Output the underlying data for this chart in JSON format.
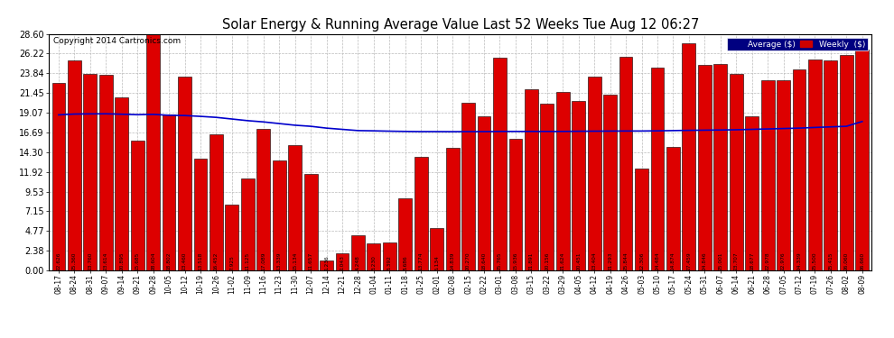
{
  "title": "Solar Energy & Running Average Value Last 52 Weeks Tue Aug 12 06:27",
  "copyright": "Copyright 2014 Cartronics.com",
  "bar_color": "#dd0000",
  "bar_edge_color": "#000000",
  "avg_line_color": "#0000cc",
  "background_color": "#ffffff",
  "plot_bg_color": "#ffffff",
  "grid_color": "#bbbbbb",
  "yticks": [
    0.0,
    2.38,
    4.77,
    7.15,
    9.53,
    11.92,
    14.3,
    16.69,
    19.07,
    21.45,
    23.84,
    26.22,
    28.6
  ],
  "ylim": [
    0,
    28.6
  ],
  "categories": [
    "08-17",
    "08-24",
    "08-31",
    "09-07",
    "09-14",
    "09-21",
    "09-28",
    "10-05",
    "10-12",
    "10-19",
    "10-26",
    "11-02",
    "11-09",
    "11-16",
    "11-23",
    "11-30",
    "12-07",
    "12-14",
    "12-21",
    "12-28",
    "01-04",
    "01-11",
    "01-18",
    "01-25",
    "02-01",
    "02-08",
    "02-15",
    "02-22",
    "03-01",
    "03-08",
    "03-15",
    "03-22",
    "03-29",
    "04-05",
    "04-12",
    "04-19",
    "04-26",
    "05-03",
    "05-10",
    "05-17",
    "05-24",
    "05-31",
    "06-07",
    "06-14",
    "06-21",
    "06-28",
    "07-05",
    "07-12",
    "07-19",
    "07-26",
    "08-02",
    "08-09"
  ],
  "values": [
    22.626,
    25.36,
    23.76,
    23.614,
    20.895,
    15.685,
    28.604,
    18.802,
    23.46,
    13.518,
    16.452,
    7.925,
    11.125,
    17.089,
    13.339,
    15.134,
    11.657,
    1.236,
    2.043,
    4.248,
    3.23,
    3.392,
    8.686,
    13.774,
    5.134,
    14.839,
    20.27,
    18.64,
    25.765,
    15.936,
    21.891,
    20.156,
    21.624,
    20.451,
    23.404,
    21.293,
    25.844,
    12.306,
    24.484,
    14.874,
    27.459,
    24.846,
    25.001,
    23.707,
    18.677,
    22.978,
    22.976,
    24.339,
    25.5,
    25.415,
    26.06,
    26.66
  ],
  "avg_values": [
    18.8,
    18.9,
    18.92,
    18.93,
    18.88,
    18.82,
    18.86,
    18.75,
    18.72,
    18.62,
    18.5,
    18.3,
    18.1,
    17.95,
    17.75,
    17.55,
    17.42,
    17.2,
    17.05,
    16.9,
    16.87,
    16.83,
    16.8,
    16.78,
    16.78,
    16.77,
    16.78,
    16.78,
    16.8,
    16.8,
    16.8,
    16.8,
    16.8,
    16.82,
    16.83,
    16.84,
    16.85,
    16.85,
    16.87,
    16.9,
    16.93,
    16.95,
    16.97,
    17.0,
    17.05,
    17.1,
    17.15,
    17.2,
    17.28,
    17.35,
    17.42,
    18.0
  ],
  "legend_avg_bg": "#000080",
  "legend_weekly_bg": "#cc0000",
  "figsize": [
    9.9,
    3.75
  ],
  "dpi": 100
}
